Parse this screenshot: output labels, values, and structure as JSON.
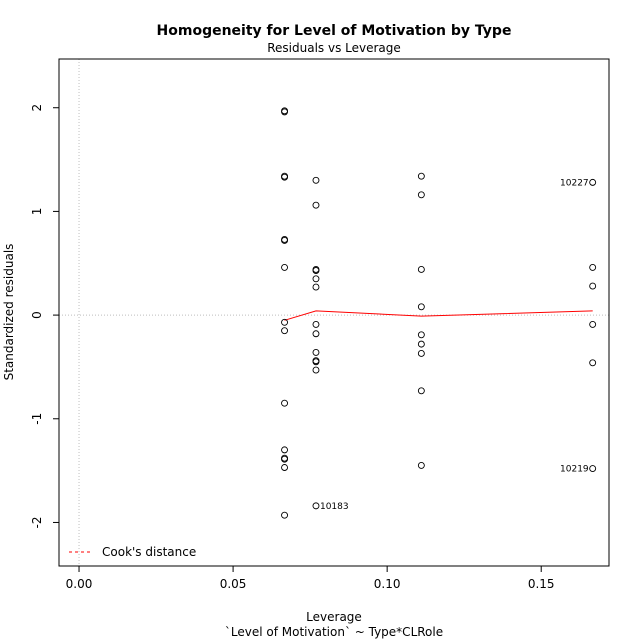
{
  "chart_data": {
    "type": "scatter",
    "title": "Homogeneity for Level of Motivation by Type",
    "subtitle": "Residuals vs Leverage",
    "xlabel": "Leverage",
    "ylabel": "Standardized residuals",
    "caption": "`Level of Motivation` ~ Type*CLRole",
    "xlim": [
      -0.0065,
      0.172
    ],
    "ylim": [
      -2.42,
      2.47
    ],
    "x_ticks": [
      0.0,
      0.05,
      0.1,
      0.15
    ],
    "x_tick_labels": [
      "0.00",
      "0.05",
      "0.10",
      "0.15"
    ],
    "y_ticks": [
      -2,
      -1,
      0,
      1,
      2
    ],
    "y_tick_labels": [
      "-2",
      "-1",
      "0",
      "1",
      "2"
    ],
    "grid": false,
    "reference_lines": {
      "x": 0,
      "y": 0
    },
    "points": [
      {
        "x": 0.0667,
        "y": 1.97
      },
      {
        "x": 0.0667,
        "y": 1.96
      },
      {
        "x": 0.0667,
        "y": 1.34
      },
      {
        "x": 0.0667,
        "y": 1.33
      },
      {
        "x": 0.0667,
        "y": 0.73
      },
      {
        "x": 0.0667,
        "y": 0.72
      },
      {
        "x": 0.0667,
        "y": 0.46
      },
      {
        "x": 0.0667,
        "y": -0.07
      },
      {
        "x": 0.0667,
        "y": -0.15
      },
      {
        "x": 0.0667,
        "y": -0.85
      },
      {
        "x": 0.0667,
        "y": -1.3
      },
      {
        "x": 0.0667,
        "y": -1.38
      },
      {
        "x": 0.0667,
        "y": -1.39
      },
      {
        "x": 0.0667,
        "y": -1.47
      },
      {
        "x": 0.0667,
        "y": -1.93
      },
      {
        "x": 0.0769,
        "y": 1.3
      },
      {
        "x": 0.0769,
        "y": 1.06
      },
      {
        "x": 0.0769,
        "y": 0.44
      },
      {
        "x": 0.0769,
        "y": 0.43
      },
      {
        "x": 0.0769,
        "y": 0.35
      },
      {
        "x": 0.0769,
        "y": 0.27
      },
      {
        "x": 0.0769,
        "y": -0.09
      },
      {
        "x": 0.0769,
        "y": -0.18
      },
      {
        "x": 0.0769,
        "y": -0.36
      },
      {
        "x": 0.0769,
        "y": -0.44
      },
      {
        "x": 0.0769,
        "y": -0.45
      },
      {
        "x": 0.0769,
        "y": -0.53
      },
      {
        "x": 0.0769,
        "y": -1.84
      },
      {
        "x": 0.1111,
        "y": 1.34
      },
      {
        "x": 0.1111,
        "y": 1.16
      },
      {
        "x": 0.1111,
        "y": 0.44
      },
      {
        "x": 0.1111,
        "y": 0.08
      },
      {
        "x": 0.1111,
        "y": -0.19
      },
      {
        "x": 0.1111,
        "y": -0.28
      },
      {
        "x": 0.1111,
        "y": -0.37
      },
      {
        "x": 0.1111,
        "y": -0.73
      },
      {
        "x": 0.1111,
        "y": -1.45
      },
      {
        "x": 0.1667,
        "y": 1.28
      },
      {
        "x": 0.1667,
        "y": 0.46
      },
      {
        "x": 0.1667,
        "y": 0.28
      },
      {
        "x": 0.1667,
        "y": -0.09
      },
      {
        "x": 0.1667,
        "y": -0.46
      },
      {
        "x": 0.1667,
        "y": -1.48
      }
    ],
    "point_labels": [
      {
        "text": "10227",
        "x": 0.1667,
        "y": 1.28,
        "side": "left"
      },
      {
        "text": "10219",
        "x": 0.1667,
        "y": -1.48,
        "side": "left"
      },
      {
        "text": "10183",
        "x": 0.0769,
        "y": -1.84,
        "side": "right"
      }
    ],
    "smooth_line": {
      "color": "#ff0000",
      "x": [
        0.0667,
        0.0769,
        0.1111,
        0.1667
      ],
      "y": [
        -0.05,
        0.04,
        -0.01,
        0.04
      ]
    },
    "legend": {
      "position": "bottom-left",
      "entries": [
        {
          "label": "Cook's distance",
          "color": "#ff0000",
          "style": "dashed"
        }
      ]
    }
  }
}
